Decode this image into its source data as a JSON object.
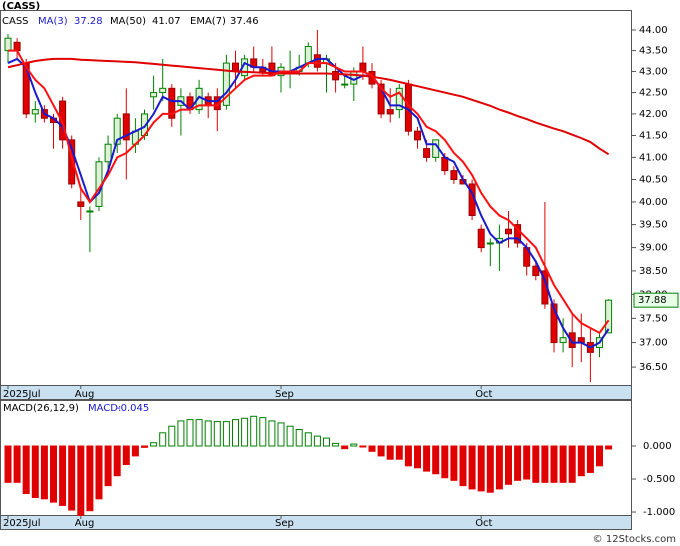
{
  "chart_data": [
    {
      "type": "candlestick",
      "title": "(CASS)",
      "ticker": "CASS",
      "log_scale": true,
      "grid": false,
      "up_color": "#008000",
      "down_color": "#e00000",
      "categories": [
        "2025Jul",
        null,
        null,
        null,
        null,
        null,
        null,
        null,
        "Aug",
        null,
        null,
        null,
        null,
        null,
        null,
        null,
        null,
        null,
        null,
        null,
        null,
        null,
        null,
        null,
        null,
        null,
        null,
        null,
        null,
        null,
        "Sep",
        null,
        null,
        null,
        null,
        null,
        null,
        null,
        null,
        null,
        null,
        null,
        null,
        null,
        null,
        null,
        null,
        null,
        null,
        null,
        null,
        null,
        "Oct",
        null,
        null,
        null,
        null,
        null,
        null,
        null,
        null,
        null,
        null,
        null,
        null,
        null,
        null
      ],
      "open": [
        43.5,
        43.7,
        43.2,
        42.0,
        42.1,
        41.9,
        42.3,
        41.4,
        40.0,
        39.8,
        39.9,
        40.9,
        41.3,
        42.0,
        41.3,
        41.5,
        42.4,
        42.5,
        42.6,
        42.2,
        42.4,
        42.1,
        42.4,
        42.4,
        42.2,
        43.2,
        42.9,
        43.3,
        43.1,
        43.2,
        42.9,
        43.0,
        43.0,
        43.2,
        43.4,
        43.2,
        43.0,
        42.7,
        42.7,
        43.2,
        43.0,
        42.7,
        42.1,
        42.1,
        42.7,
        41.6,
        41.2,
        41.0,
        41.0,
        40.7,
        40.5,
        40.4,
        39.4,
        39.1,
        39.1,
        39.4,
        39.5,
        39.0,
        38.6,
        38.5,
        37.8,
        37.0,
        37.2,
        37.1,
        37.0,
        36.9,
        37.2
      ],
      "high": [
        43.9,
        43.8,
        43.3,
        42.3,
        42.2,
        42.0,
        42.4,
        41.5,
        40.3,
        39.9,
        41.0,
        41.5,
        42.0,
        42.6,
        41.9,
        42.1,
        42.9,
        43.3,
        42.7,
        42.6,
        42.5,
        42.8,
        42.5,
        42.6,
        43.4,
        43.5,
        43.4,
        43.6,
        43.3,
        43.6,
        43.2,
        43.5,
        43.4,
        43.7,
        44.0,
        43.4,
        43.2,
        42.9,
        43.1,
        43.6,
        43.2,
        42.8,
        42.6,
        42.7,
        42.8,
        41.7,
        41.4,
        41.4,
        41.1,
        40.8,
        40.6,
        40.5,
        39.5,
        39.2,
        39.5,
        39.8,
        39.6,
        39.1,
        38.7,
        40.0,
        37.9,
        37.5,
        37.6,
        37.6,
        37.3,
        37.2,
        37.9
      ],
      "low": [
        43.2,
        43.3,
        41.9,
        41.8,
        41.8,
        41.2,
        41.2,
        40.3,
        39.6,
        38.9,
        39.8,
        40.6,
        41.1,
        40.5,
        41.1,
        41.4,
        42.1,
        42.3,
        41.7,
        41.5,
        42.0,
        42.0,
        41.9,
        41.6,
        42.1,
        42.6,
        42.8,
        43.0,
        42.9,
        42.9,
        42.5,
        42.6,
        42.9,
        43.1,
        43.0,
        42.5,
        42.5,
        42.6,
        42.3,
        42.8,
        42.6,
        41.9,
        41.8,
        41.9,
        41.5,
        41.2,
        40.9,
        40.9,
        40.6,
        40.4,
        40.4,
        39.6,
        38.9,
        38.6,
        38.5,
        39.0,
        39.0,
        38.4,
        38.3,
        37.7,
        36.8,
        36.8,
        36.5,
        36.6,
        36.2,
        36.7,
        37.2
      ],
      "close": [
        43.8,
        43.5,
        42.0,
        42.1,
        41.9,
        41.8,
        41.4,
        40.4,
        39.9,
        39.8,
        40.9,
        41.3,
        41.9,
        41.4,
        41.6,
        42.0,
        42.5,
        42.6,
        41.9,
        42.4,
        42.1,
        42.6,
        42.2,
        42.1,
        43.2,
        43.0,
        43.3,
        43.1,
        43.0,
        42.9,
        43.1,
        43.0,
        43.1,
        43.6,
        43.1,
        43.3,
        42.8,
        42.7,
        43.0,
        43.0,
        42.7,
        42.0,
        42.0,
        42.6,
        41.6,
        41.4,
        41.0,
        41.4,
        40.7,
        40.5,
        40.4,
        39.7,
        39.0,
        39.1,
        39.2,
        39.3,
        39.1,
        38.6,
        38.4,
        37.8,
        37.0,
        37.1,
        36.9,
        37.0,
        36.8,
        37.1,
        37.88
      ],
      "series": [
        {
          "name": "MA(3)",
          "color": "#1a1acc",
          "values": [
            43.2,
            43.3,
            43.1,
            42.5,
            42.0,
            41.9,
            41.7,
            41.2,
            40.6,
            40.0,
            40.2,
            40.7,
            41.4,
            41.5,
            41.6,
            41.7,
            42.0,
            42.4,
            42.3,
            42.3,
            42.1,
            42.4,
            42.3,
            42.3,
            42.5,
            42.8,
            43.2,
            43.1,
            43.1,
            43.0,
            43.0,
            43.0,
            43.1,
            43.2,
            43.3,
            43.3,
            43.1,
            42.9,
            42.8,
            42.9,
            42.9,
            42.6,
            42.2,
            42.2,
            42.1,
            41.9,
            41.3,
            41.3,
            41.0,
            40.9,
            40.5,
            40.2,
            39.7,
            39.3,
            39.1,
            39.2,
            39.2,
            39.0,
            38.7,
            38.3,
            37.7,
            37.3,
            37.0,
            37.0,
            36.9,
            37.0,
            37.28
          ]
        },
        {
          "name": "MA(50)",
          "color": "#e00000",
          "values": [
            43.1,
            43.15,
            43.2,
            43.25,
            43.28,
            43.3,
            43.3,
            43.3,
            43.28,
            43.27,
            43.26,
            43.25,
            43.24,
            43.23,
            43.22,
            43.2,
            43.18,
            43.16,
            43.14,
            43.12,
            43.1,
            43.08,
            43.06,
            43.04,
            43.02,
            43.0,
            42.99,
            42.98,
            42.97,
            42.96,
            42.95,
            42.95,
            42.95,
            42.95,
            42.95,
            42.95,
            42.94,
            42.93,
            42.92,
            42.9,
            42.87,
            42.84,
            42.8,
            42.75,
            42.7,
            42.65,
            42.6,
            42.55,
            42.5,
            42.45,
            42.4,
            42.33,
            42.26,
            42.19,
            42.1,
            42.03,
            41.95,
            41.88,
            41.8,
            41.73,
            41.66,
            41.6,
            41.52,
            41.44,
            41.35,
            41.2,
            41.07
          ]
        },
        {
          "name": "EMA(7)",
          "color": "#ff1010",
          "values": [
            43.5,
            43.5,
            43.1,
            42.8,
            42.6,
            42.2,
            41.8,
            41.0,
            40.3,
            40.0,
            40.3,
            40.6,
            41.0,
            41.1,
            41.3,
            41.5,
            41.8,
            42.0,
            42.0,
            42.1,
            42.1,
            42.2,
            42.2,
            42.2,
            42.4,
            42.6,
            42.8,
            42.9,
            42.9,
            42.9,
            43.0,
            43.0,
            43.0,
            43.2,
            43.2,
            43.2,
            43.1,
            43.0,
            43.0,
            43.0,
            42.9,
            42.6,
            42.4,
            42.5,
            42.2,
            42.0,
            41.7,
            41.6,
            41.4,
            41.1,
            40.9,
            40.6,
            40.2,
            39.9,
            39.7,
            39.6,
            39.4,
            39.2,
            39.0,
            38.6,
            38.2,
            37.9,
            37.6,
            37.4,
            37.3,
            37.2,
            37.46
          ]
        }
      ],
      "ylim": [
        36.14,
        44.49
      ],
      "yticks": [
        {
          "value": 44.0,
          "label": "44.00"
        },
        {
          "value": 43.5,
          "label": "43.50"
        },
        {
          "value": 43.0,
          "label": "43.00"
        },
        {
          "value": 42.5,
          "label": "42.50"
        },
        {
          "value": 42.0,
          "label": "42.00"
        },
        {
          "value": 41.5,
          "label": "41.50"
        },
        {
          "value": 41.0,
          "label": "41.00"
        },
        {
          "value": 40.5,
          "label": "40.50"
        },
        {
          "value": 40.0,
          "label": "40.00"
        },
        {
          "value": 39.5,
          "label": "39.50"
        },
        {
          "value": 39.0,
          "label": "39.00"
        },
        {
          "value": 38.5,
          "label": "38.50"
        },
        {
          "value": 38.0,
          "label": "38.00"
        },
        {
          "value": 37.5,
          "label": "37.50"
        },
        {
          "value": 37.0,
          "label": "37.00"
        },
        {
          "value": 36.5,
          "label": "36.50"
        }
      ]
    },
    {
      "type": "bar",
      "title": "MACD(26,12,9)",
      "value_prefix": "MACD:",
      "pos_color": "#008000",
      "neg_color": "#e00000",
      "categories": [
        "2025Jul",
        null,
        null,
        null,
        null,
        null,
        null,
        null,
        "Aug",
        null,
        null,
        null,
        null,
        null,
        null,
        null,
        null,
        null,
        null,
        null,
        null,
        null,
        null,
        null,
        null,
        null,
        null,
        null,
        null,
        null,
        "Sep",
        null,
        null,
        null,
        null,
        null,
        null,
        null,
        null,
        null,
        null,
        null,
        null,
        null,
        null,
        null,
        null,
        null,
        null,
        null,
        null,
        null,
        "Oct",
        null,
        null,
        null,
        null,
        null,
        null,
        null,
        null,
        null,
        null,
        null,
        null,
        null,
        null
      ],
      "values": [
        -0.55,
        -0.55,
        -0.72,
        -0.78,
        -0.8,
        -0.85,
        -0.9,
        -0.97,
        -1.05,
        -0.98,
        -0.8,
        -0.6,
        -0.45,
        -0.28,
        -0.15,
        -0.02,
        0.05,
        0.2,
        0.3,
        0.38,
        0.4,
        0.4,
        0.38,
        0.37,
        0.37,
        0.4,
        0.42,
        0.45,
        0.43,
        0.38,
        0.35,
        0.3,
        0.25,
        0.2,
        0.15,
        0.12,
        0.04,
        -0.04,
        0.03,
        -0.01,
        -0.08,
        -0.15,
        -0.2,
        -0.2,
        -0.3,
        -0.33,
        -0.38,
        -0.42,
        -0.48,
        -0.52,
        -0.6,
        -0.65,
        -0.68,
        -0.7,
        -0.65,
        -0.58,
        -0.52,
        -0.5,
        -0.55,
        -0.55,
        -0.55,
        -0.55,
        -0.55,
        -0.45,
        -0.4,
        -0.3,
        -0.045
      ],
      "ylim": [
        -1.045,
        0.697
      ],
      "yticks": [
        {
          "value": 0,
          "label": "0.000"
        },
        {
          "value": -0.5,
          "label": "-0.500"
        },
        {
          "value": -1.0,
          "label": "-1.000"
        }
      ]
    },
    {
      "type": "note",
      "watermark": "© 12Stocks.com"
    }
  ]
}
